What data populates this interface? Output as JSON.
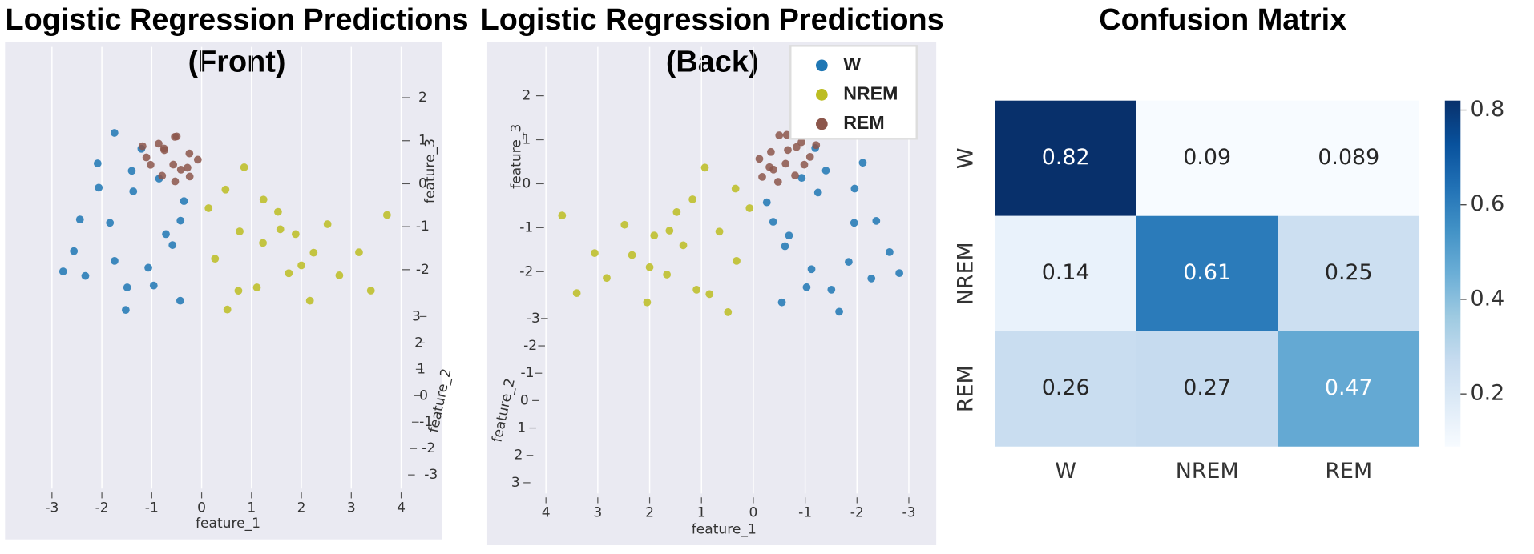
{
  "chart_data": [
    {
      "type": "scatter3d",
      "view": "front",
      "title": "Logistic Regression Predictions",
      "subtitle": "(Front)",
      "xlabel": "feature_1",
      "ylabel": "feature_2",
      "zlabel": "feature_3",
      "xticks": [
        -3,
        -2,
        -1,
        0,
        1,
        2,
        3,
        4
      ],
      "yticks": [
        3,
        2,
        1,
        0,
        -1,
        -2,
        -3
      ],
      "zticks": [
        2,
        1,
        0,
        -1,
        -2
      ],
      "series": [
        {
          "name": "W",
          "color": "#1f77b4",
          "x": [
            -2.6,
            -2.3,
            -2.1,
            -1.9,
            -1.7,
            -1.5,
            -1.3,
            -1.1,
            -0.9,
            -0.7,
            -0.5,
            -0.3,
            -2.8,
            -2.4,
            -1.8,
            -1.2,
            -0.6,
            -1.6,
            -2.0,
            -1.0,
            -0.4,
            -1.4
          ],
          "y": [
            0.5,
            -0.4,
            0.2,
            0.8,
            -0.6,
            0.1,
            -0.9,
            0.4,
            0.6,
            -0.2,
            0.9,
            -0.7,
            0.3,
            -0.5,
            0.7,
            -0.1,
            0.2,
            1.0,
            -0.8,
            0.5,
            -0.3,
            0.0
          ],
          "z": [
            -1.5,
            -2.2,
            0.5,
            -0.8,
            1.1,
            -2.4,
            -0.3,
            -1.9,
            0.2,
            -1.2,
            -2.6,
            -0.5,
            -2.0,
            -0.9,
            -1.7,
            0.8,
            -1.4,
            -2.8,
            -0.2,
            -2.3,
            -0.9,
            0.3
          ]
        },
        {
          "name": "NREM",
          "color": "#bcbd22",
          "x": [
            0.1,
            0.3,
            0.5,
            0.7,
            0.9,
            1.1,
            1.3,
            1.5,
            1.7,
            1.9,
            2.1,
            2.3,
            2.5,
            2.8,
            3.1,
            3.4,
            3.7,
            0.4,
            0.8,
            1.2,
            1.6,
            2.0
          ],
          "y": [
            0.5,
            -0.4,
            0.2,
            0.8,
            -0.6,
            0.1,
            -0.9,
            0.4,
            0.6,
            -0.2,
            0.9,
            -0.7,
            0.3,
            -0.5,
            0.7,
            -0.1,
            0.2,
            1.0,
            -0.8,
            0.5,
            -0.3,
            0.0
          ],
          "z": [
            -0.5,
            -1.8,
            -2.9,
            -1.0,
            0.3,
            -2.4,
            -1.5,
            -0.6,
            -2.0,
            -1.2,
            -2.6,
            -1.7,
            -0.9,
            -2.2,
            -1.5,
            -2.5,
            -0.7,
            0.0,
            -2.6,
            -0.3,
            -1.1,
            -1.9
          ]
        },
        {
          "name": "REM",
          "color": "#8c564b",
          "x": [
            -1.2,
            -1.0,
            -0.9,
            -0.8,
            -0.7,
            -0.6,
            -0.5,
            -0.4,
            -0.3,
            -0.2,
            -0.1,
            -1.1,
            -0.8,
            -0.5,
            -0.3,
            -0.6
          ],
          "y": [
            0.2,
            -0.3,
            0.5,
            0.1,
            -0.6,
            0.4,
            0.0,
            -0.2,
            0.7,
            -0.5,
            0.3,
            -0.1,
            0.6,
            -0.4,
            0.2,
            0.8
          ],
          "z": [
            0.9,
            0.4,
            1.0,
            0.2,
            0.7,
            0.5,
            1.1,
            0.3,
            0.8,
            0.1,
            0.6,
            0.6,
            0.9,
            0.0,
            0.4,
            1.2
          ]
        }
      ]
    },
    {
      "type": "scatter3d",
      "view": "back",
      "title": "Logistic Regression Predictions",
      "subtitle": "(Back)",
      "xlabel": "feature_1",
      "ylabel": "feature_2",
      "zlabel": "feature_3",
      "xticks": [
        4,
        3,
        2,
        1,
        0,
        -1,
        -2,
        -3
      ],
      "yticks": [
        -3,
        -2,
        -1,
        0,
        1,
        2,
        3
      ],
      "zticks": [
        2,
        1,
        0,
        -1,
        -2
      ],
      "legend": "upper right"
    },
    {
      "type": "heatmap",
      "title": "Confusion Matrix",
      "categories": [
        "W",
        "NREM",
        "REM"
      ],
      "values": [
        [
          0.82,
          0.09,
          0.089
        ],
        [
          0.14,
          0.61,
          0.25
        ],
        [
          0.26,
          0.27,
          0.47
        ]
      ],
      "colormap": "Blues",
      "clim": [
        0.089,
        0.82
      ],
      "cticks": [
        0.8,
        0.6,
        0.4,
        0.2
      ]
    }
  ]
}
